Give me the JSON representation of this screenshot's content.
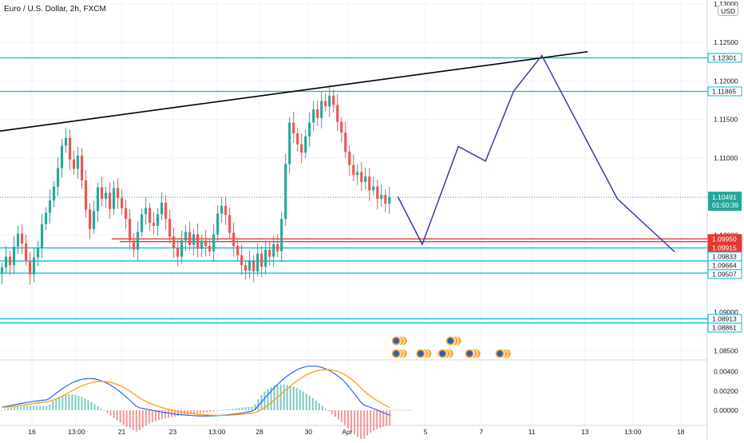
{
  "header": {
    "title": "Euro / U.S. Dollar, 2h, FXCM",
    "currency": "USD"
  },
  "colors": {
    "up": "#26a69a",
    "down": "#ef5350",
    "level": "#00bcd4",
    "red_level": "#e53935",
    "trend": "#000000",
    "path": "#3f3a9c",
    "macd": "#2962ff",
    "signal": "#ff9800",
    "price_tag": "#26a69a"
  },
  "chart_data": {
    "type": "candlestick",
    "price_axis": {
      "ylim": [
        1.0841,
        1.1303
      ],
      "ticks": [
        "1.13000",
        "1.12500",
        "1.12000",
        "1.11500",
        "1.11000",
        "1.10000",
        "1.09000",
        "1.08500"
      ],
      "tick_values": [
        1.13,
        1.125,
        1.12,
        1.115,
        1.11,
        1.1,
        1.09,
        1.085
      ]
    },
    "x_axis": {
      "labels": [
        "16",
        "13:00",
        "21",
        "23",
        "13:00",
        "28",
        "30",
        "Apr",
        "5",
        "7",
        "11",
        "13",
        "13:00",
        "18"
      ],
      "positions": [
        6.0,
        14.4,
        22.9,
        32.5,
        40.8,
        48.8,
        58.0,
        65.3,
        80.0,
        90.5,
        100.0,
        110.0,
        119.0,
        128.0
      ]
    },
    "x_range": [
      0,
      133
    ],
    "close_series": [
      1.0958,
      1.0972,
      1.0961,
      1.0985,
      1.1002,
      1.0989,
      1.0967,
      1.0949,
      1.0971,
      1.0983,
      1.1014,
      1.1029,
      1.1045,
      1.1063,
      1.1087,
      1.1116,
      1.1126,
      1.1098,
      1.1086,
      1.1103,
      1.1071,
      1.1033,
      1.1008,
      1.1031,
      1.1062,
      1.1047,
      1.1055,
      1.1034,
      1.1061,
      1.1048,
      1.1035,
      1.1021,
      1.0993,
      1.0981,
      1.1004,
      1.1027,
      1.1035,
      1.1016,
      1.1012,
      1.1027,
      1.1042,
      1.1021,
      1.0998,
      1.0983,
      1.0972,
      1.0993,
      1.1004,
      1.0987,
      1.1001,
      1.0982,
      1.0993,
      1.0986,
      1.0979,
      1.1001,
      1.1028,
      1.1038,
      1.1026,
      1.1003,
      1.0986,
      1.0974,
      1.0961,
      1.0954,
      1.0966,
      1.0953,
      1.0976,
      1.0959,
      1.0981,
      1.0972,
      1.0988,
      1.0979,
      1.1021,
      1.1092,
      1.1146,
      1.1132,
      1.1118,
      1.1107,
      1.1128,
      1.1146,
      1.1163,
      1.1152,
      1.1174,
      1.1167,
      1.1181,
      1.1169,
      1.1147,
      1.1133,
      1.1108,
      1.1091,
      1.1078,
      1.1082,
      1.1069,
      1.1076,
      1.1058,
      1.1063,
      1.1047,
      1.1052,
      1.1041,
      1.1049
    ],
    "trendline": {
      "points": [
        [
          0,
          1.1135
        ],
        [
          110.5,
          1.1238
        ]
      ]
    },
    "projection_path": {
      "points": [
        [
          74.8,
          1.105
        ],
        [
          79.4,
          1.0988
        ],
        [
          86.2,
          1.1115
        ],
        [
          91.3,
          1.1096
        ],
        [
          96.6,
          1.1187
        ],
        [
          101.9,
          1.1233
        ],
        [
          116.1,
          1.1047
        ],
        [
          126.9,
          1.0978
        ]
      ]
    },
    "horizontal_levels": [
      {
        "value": 1.123,
        "label": "1.12301",
        "color": "cyan"
      },
      {
        "value": 1.11865,
        "label": "1.11865",
        "color": "cyan"
      },
      {
        "value": 1.0995,
        "label": "1.09950",
        "color": "red"
      },
      {
        "value": 1.09915,
        "label": "1.09915",
        "color": "red"
      },
      {
        "value": 1.09833,
        "label": "1.09833",
        "color": "cyan"
      },
      {
        "value": 1.09664,
        "label": "1.09664",
        "color": "cyan"
      },
      {
        "value": 1.09507,
        "label": "1.09507",
        "color": "cyan"
      },
      {
        "value": 1.08913,
        "label": "1.08913",
        "color": "cyan"
      },
      {
        "value": 1.08861,
        "label": "1.08861",
        "color": "cyan"
      }
    ],
    "current_price": {
      "value": 1.10491,
      "label": "1.10491",
      "countdown": "01:50:39"
    },
    "macd": {
      "ylim": [
        -0.0015,
        0.0053
      ],
      "ticks": [
        "0.00400",
        "0.00200",
        "0.00000"
      ],
      "tick_values": [
        0.004,
        0.002,
        0.0
      ]
    },
    "events_count": 7
  }
}
